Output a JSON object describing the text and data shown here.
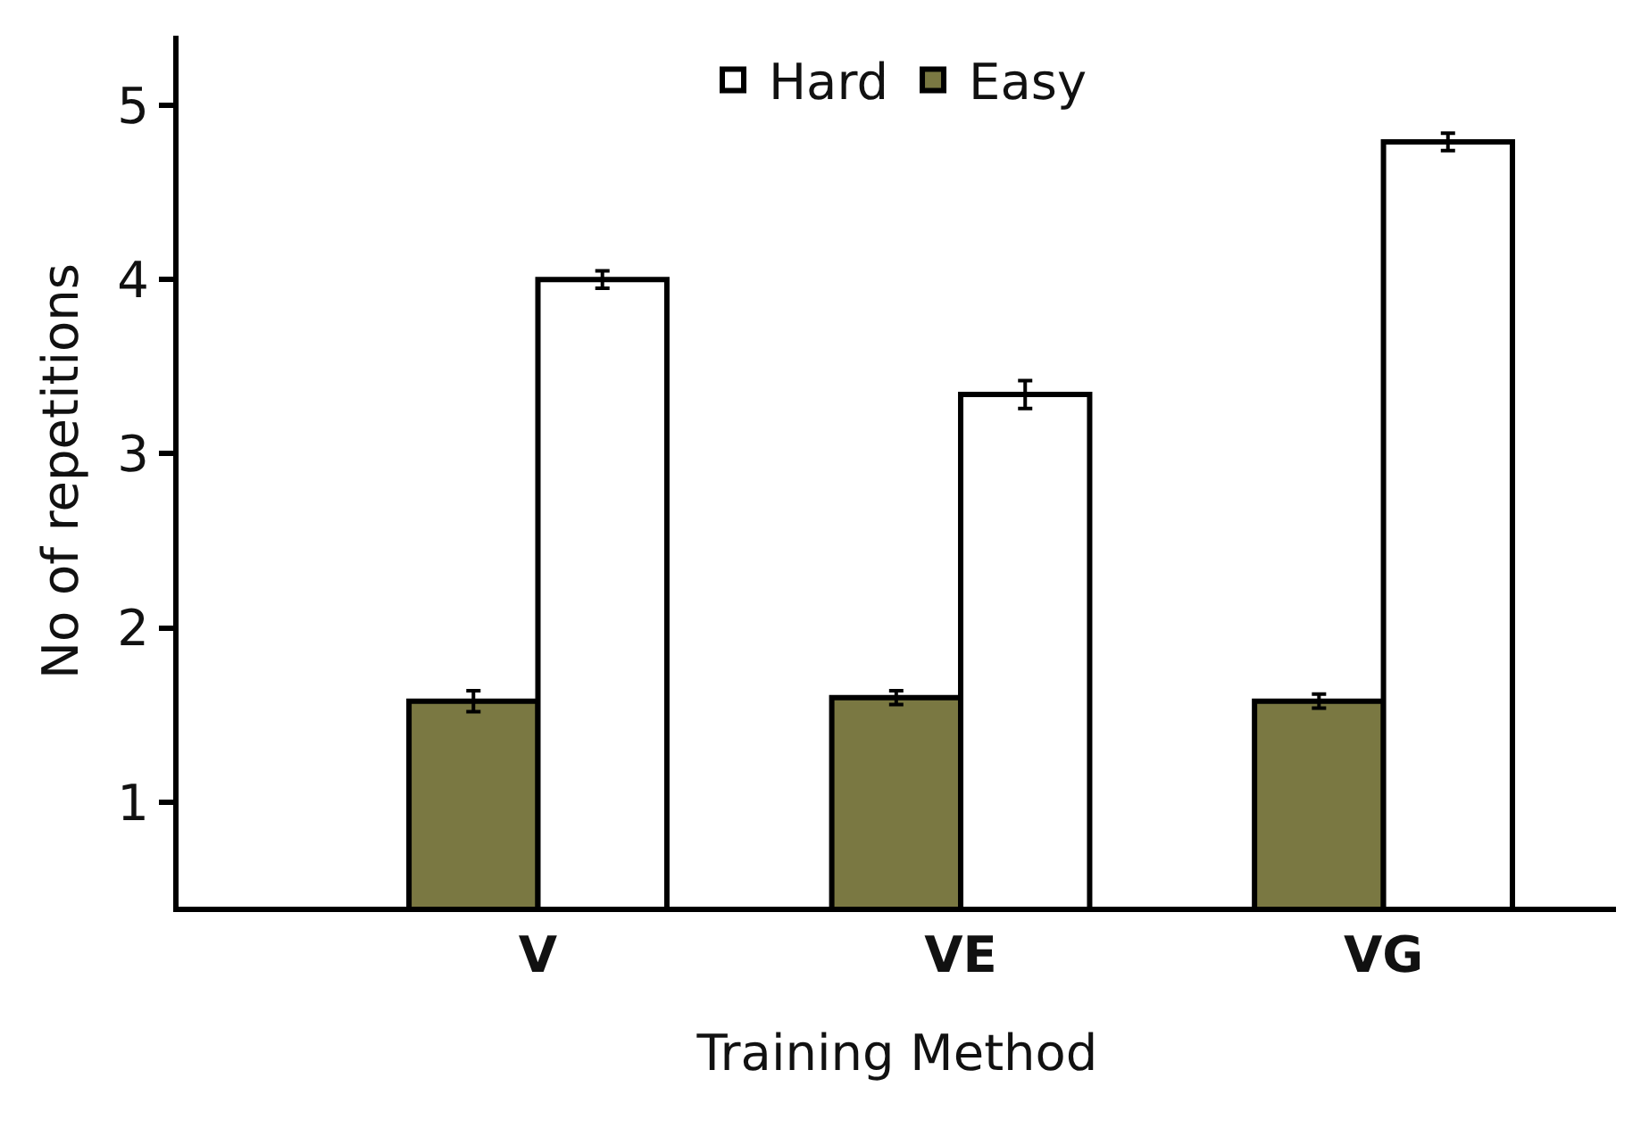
{
  "chart_data": {
    "type": "bar",
    "xlabel": "Training Method",
    "ylabel": "No of repetitions",
    "categories": [
      "V",
      "VE",
      "VG"
    ],
    "series": [
      {
        "name": "Easy",
        "color": "#7a7842",
        "values": [
          1.58,
          1.6,
          1.58
        ],
        "errors": [
          0.06,
          0.04,
          0.04
        ]
      },
      {
        "name": "Hard",
        "color": "#ffffff",
        "values": [
          4.0,
          3.34,
          4.79
        ],
        "errors": [
          0.05,
          0.08,
          0.05
        ]
      }
    ],
    "ylim": [
      0.4,
      5.4
    ],
    "yticks": [
      1,
      2,
      3,
      4,
      5
    ],
    "grid": false,
    "legend": "top"
  }
}
